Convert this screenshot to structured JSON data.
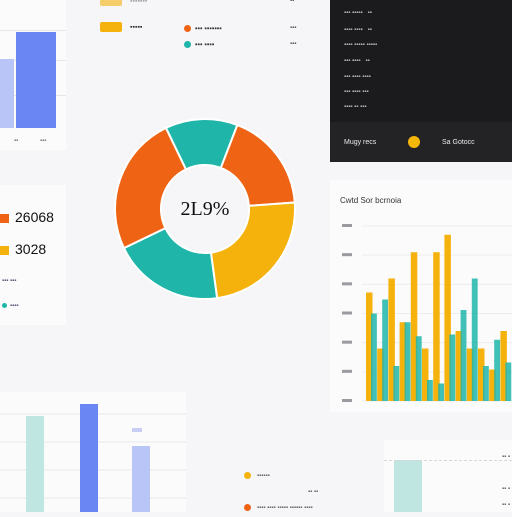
{
  "colors": {
    "blue": "#6a86f2",
    "blue_light": "#b9c5f7",
    "orange": "#ef6414",
    "amber": "#f5b20c",
    "teal": "#1fb5a9",
    "teal_light": "#bfe6e1",
    "dark": "#1b1b1d"
  },
  "donut_center_label": "2L9%",
  "kpis": [
    {
      "value": "26068",
      "color": "#ef6414"
    },
    {
      "value": "3028",
      "color": "#f5b20c"
    }
  ],
  "dark_panel": {
    "footer_label": "Mugy recs",
    "footer_value": "Sa Gotocc"
  },
  "right_chart_title": "Cwtd Sor bcrnoia",
  "chart_data": [
    {
      "type": "bar",
      "series": [
        {
          "values": [
            70,
            98
          ]
        }
      ],
      "ylim": [
        0,
        100
      ]
    },
    {
      "type": "pie",
      "values": [
        18,
        24,
        20,
        25,
        13
      ],
      "colors": [
        "#ef6414",
        "#f5b20c",
        "#1fb5a9",
        "#ef6414",
        "#1fb5a9"
      ],
      "center_label": "2L9%"
    },
    {
      "type": "bar",
      "series": [
        {
          "values": [
            62,
            30,
            70,
            45,
            85,
            30,
            85,
            95,
            40,
            30,
            30,
            18,
            40
          ]
        },
        {
          "values": [
            50,
            58,
            20,
            45,
            37,
            12,
            10,
            38,
            52,
            70,
            20,
            35,
            22
          ]
        }
      ],
      "ylim": [
        0,
        100
      ]
    },
    {
      "type": "bar",
      "series": [
        {
          "values": [
            80,
            90,
            55
          ]
        }
      ],
      "ylim": [
        0,
        100
      ]
    }
  ]
}
